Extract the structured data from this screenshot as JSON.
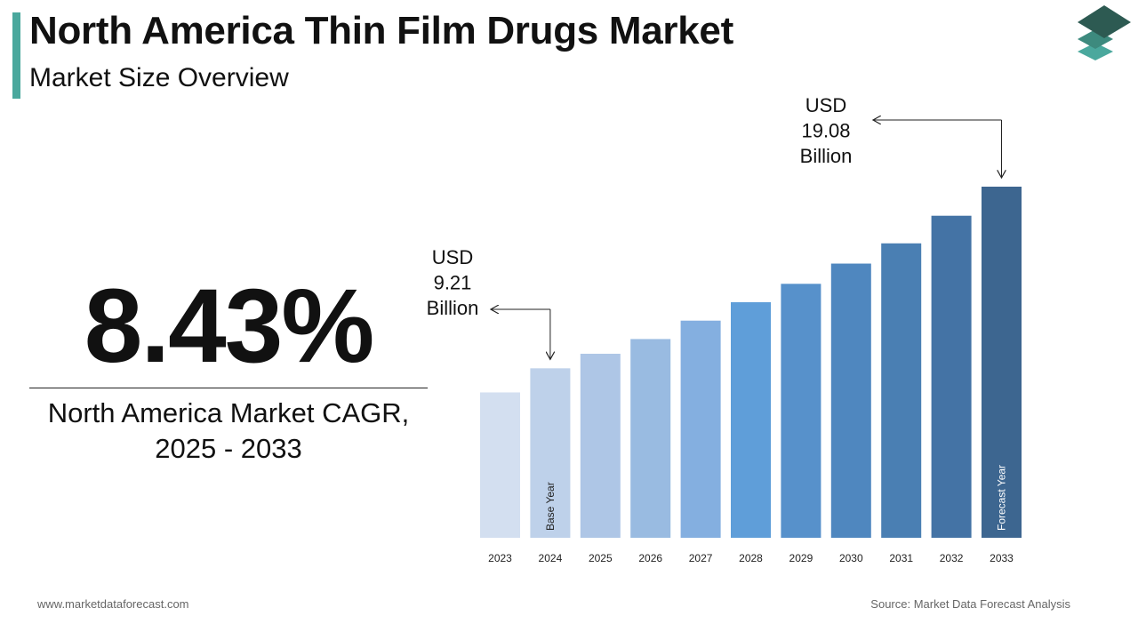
{
  "header": {
    "title": "North America Thin Film Drugs Market",
    "subtitle": "Market Size Overview"
  },
  "highlight": {
    "cagr_value": "8.43%",
    "cagr_label_line1": "North America Market CAGR,",
    "cagr_label_line2": "2025 - 2033"
  },
  "chart_data": {
    "type": "bar",
    "categories": [
      "2023",
      "2024",
      "2025",
      "2026",
      "2027",
      "2028",
      "2029",
      "2030",
      "2031",
      "2032",
      "2033"
    ],
    "values": [
      7.9,
      9.21,
      10.0,
      10.8,
      11.8,
      12.8,
      13.8,
      14.9,
      16.0,
      17.5,
      19.08
    ],
    "colors": [
      "#d3dff0",
      "#bed1ea",
      "#aec6e6",
      "#99bbe1",
      "#84afe0",
      "#5f9ed9",
      "#5791cb",
      "#4f87bf",
      "#4a7fb3",
      "#4473a5",
      "#3d6690"
    ],
    "bar_labels": {
      "2024": "Base Year",
      "2033": "Forecast Year"
    },
    "annotations": [
      {
        "category": "2024",
        "lines": [
          "USD",
          "9.21",
          "Billion"
        ]
      },
      {
        "category": "2033",
        "lines": [
          "USD",
          "19.08",
          "Billion"
        ]
      }
    ],
    "ylim": [
      0,
      19.08
    ]
  },
  "footer": {
    "website": "www.marketdataforecast.com",
    "source": "Source: Market Data Forecast Analysis"
  },
  "logo": {
    "icon": "layers-icon",
    "colors": [
      "#2d5a52",
      "#3d8a7e",
      "#4aa89d"
    ]
  }
}
